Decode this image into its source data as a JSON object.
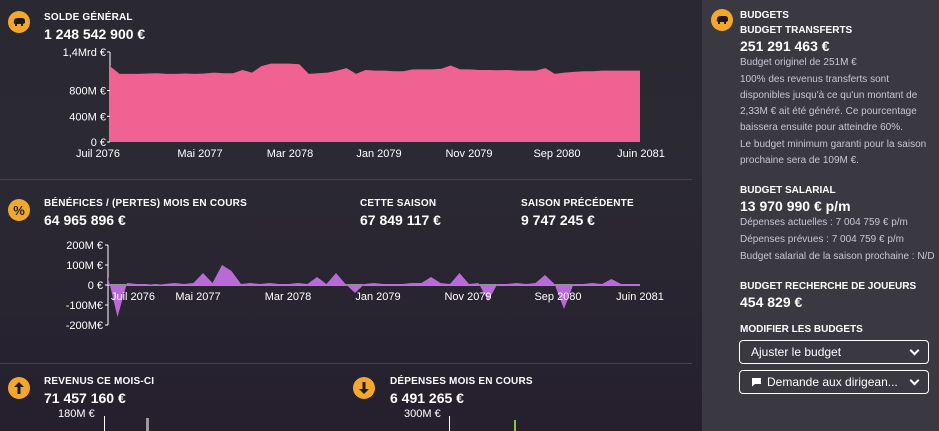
{
  "balance": {
    "title": "SOLDE GÉNÉRAL",
    "value": "1 248 542 900 €",
    "y_ticks": [
      "1,4Mrd €",
      "800M €",
      "400M €",
      "0 €"
    ],
    "x_ticks": [
      "Juil 2076",
      "Mai 2077",
      "Mar 2078",
      "Jan 2079",
      "Nov 2079",
      "Sep 2080",
      "Juin 2081"
    ],
    "chart_data": {
      "type": "area",
      "y_unit": "M €",
      "ylim": [
        0,
        1400
      ],
      "values": [
        1180,
        1060,
        1060,
        1060,
        1065,
        1070,
        1060,
        1060,
        1065,
        1060,
        1065,
        1080,
        1070,
        1070,
        1120,
        1080,
        1180,
        1220,
        1220,
        1220,
        1210,
        1060,
        1070,
        1080,
        1110,
        1150,
        1060,
        1120,
        1110,
        1110,
        1100,
        1100,
        1130,
        1130,
        1130,
        1140,
        1190,
        1130,
        1130,
        1120,
        1120,
        1115,
        1120,
        1110,
        1110,
        1110,
        1150,
        1060,
        1080,
        1090,
        1100,
        1100,
        1110,
        1110,
        1110,
        1110,
        1110
      ]
    }
  },
  "profit": {
    "title": "BÉNÉFICES / (PERTES) MOIS EN COURS",
    "value": "64 965 896 €",
    "season_title": "CETTE SAISON",
    "season_value": "67 849 117 €",
    "prev_title": "SAISON PRÉCÉDENTE",
    "prev_value": "9 747 245 €",
    "y_ticks": [
      "200M €",
      "100M €",
      "0 €",
      "-100M€",
      "-200M€"
    ],
    "x_ticks": [
      "Juil 2076",
      "Mai 2077",
      "Mar 2078",
      "Jan 2079",
      "Nov 2079",
      "Sep 2080",
      "Juin 2081"
    ],
    "chart_data": {
      "type": "area",
      "y_unit": "M €",
      "ylim": [
        -200,
        200
      ],
      "values": [
        40,
        -160,
        10,
        5,
        5,
        0,
        5,
        10,
        5,
        10,
        60,
        10,
        100,
        70,
        5,
        10,
        5,
        10,
        5,
        5,
        10,
        5,
        40,
        5,
        60,
        5,
        -40,
        5,
        10,
        5,
        5,
        5,
        10,
        10,
        40,
        10,
        5,
        60,
        5,
        10,
        -80,
        5,
        5,
        10,
        5,
        10,
        50,
        5,
        -120,
        5,
        5,
        10,
        5,
        30,
        5,
        5,
        5
      ]
    }
  },
  "revenue": {
    "title": "REVENUS CE MOIS-CI",
    "value": "71 457 160 €",
    "y_tick_top": "180M €"
  },
  "expenses": {
    "title": "DÉPENSES MOIS EN COURS",
    "value": "6 491 265 €",
    "y_tick_top": "300M €"
  },
  "budgets": {
    "title": "BUDGETS",
    "transfer_title": "BUDGET TRANSFERTS",
    "transfer_value": "251 291 463 €",
    "transfer_original": "Budget originel de 251M €",
    "transfer_note": "100% des revenus transferts sont disponibles jusqu'à ce qu'un montant de 2,33M € ait été généré. Ce pourcentage baissera ensuite pour atteindre 60%.",
    "transfer_min": "Le budget minimum garanti pour la saison prochaine sera de 109M €.",
    "salary_title": "BUDGET SALARIAL",
    "salary_value": "13 970 990 € p/m",
    "salary_current": "Dépenses actuelles : 7 004 759 € p/m",
    "salary_planned": "Dépenses prévues : 7 004 759 € p/m",
    "salary_next": "Budget salarial de la saison prochaine : N/D",
    "scouting_title": "BUDGET RECHERCHE DE JOUEURS",
    "scouting_value": "454 829 €",
    "modify_title": "MODIFIER LES BUDGETS",
    "adjust_button": "Ajuster le budget",
    "request_button": "Demande aux dirigean..."
  },
  "colors": {
    "balance_fill": "#f06292",
    "profit_fill": "#b86ad6",
    "icon_bg": "#f3a82c",
    "panel_bg": "#3a3840"
  }
}
